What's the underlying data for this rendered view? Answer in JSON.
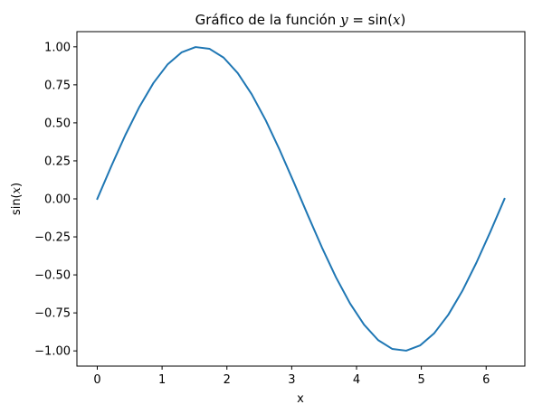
{
  "chart_data": {
    "type": "line",
    "title": "Gráfico de la función y = sin(x)",
    "title_parts": {
      "prefix": "Gráfico de la función ",
      "var": "y",
      "eq": " = sin(",
      "arg": "x",
      "close": ")"
    },
    "xlabel": "x",
    "ylabel": "sin(x)",
    "ylabel_parts": {
      "prefix": "sin(",
      "arg": "x",
      "close": ")"
    },
    "xlim": [
      -0.314,
      6.597
    ],
    "ylim": [
      -1.1,
      1.1
    ],
    "xticks": [
      0,
      1,
      2,
      3,
      4,
      5,
      6
    ],
    "xtick_labels": [
      "0",
      "1",
      "2",
      "3",
      "4",
      "5",
      "6"
    ],
    "yticks": [
      -1.0,
      -0.75,
      -0.5,
      -0.25,
      0.0,
      0.25,
      0.5,
      0.75,
      1.0
    ],
    "ytick_labels": [
      "−1.00",
      "−0.75",
      "−0.50",
      "−0.25",
      "0.00",
      "0.25",
      "0.50",
      "0.75",
      "1.00"
    ],
    "grid": false,
    "series": [
      {
        "color": "#1f77b4",
        "x": [
          0.0,
          0.2166,
          0.4333,
          0.6499,
          0.8666,
          1.0832,
          1.2999,
          1.5165,
          1.7332,
          1.9498,
          2.1665,
          2.3831,
          2.5998,
          2.8164,
          3.0331,
          3.2497,
          3.4664,
          3.683,
          3.8997,
          4.1163,
          4.333,
          4.5496,
          4.7663,
          4.9829,
          5.1996,
          5.4162,
          5.6329,
          5.8495,
          6.0662,
          6.2832
        ],
        "y": [
          0.0,
          0.215,
          0.4199,
          0.6052,
          0.7622,
          0.8834,
          0.9635,
          0.9985,
          0.9868,
          0.929,
          0.8274,
          0.688,
          0.5163,
          0.3197,
          0.1083,
          -0.1082,
          -0.3197,
          -0.5163,
          -0.688,
          -0.8274,
          -0.929,
          -0.9868,
          -0.9985,
          -0.9635,
          -0.8834,
          -0.7622,
          -0.6052,
          -0.4199,
          -0.215,
          0.0
        ]
      }
    ]
  }
}
